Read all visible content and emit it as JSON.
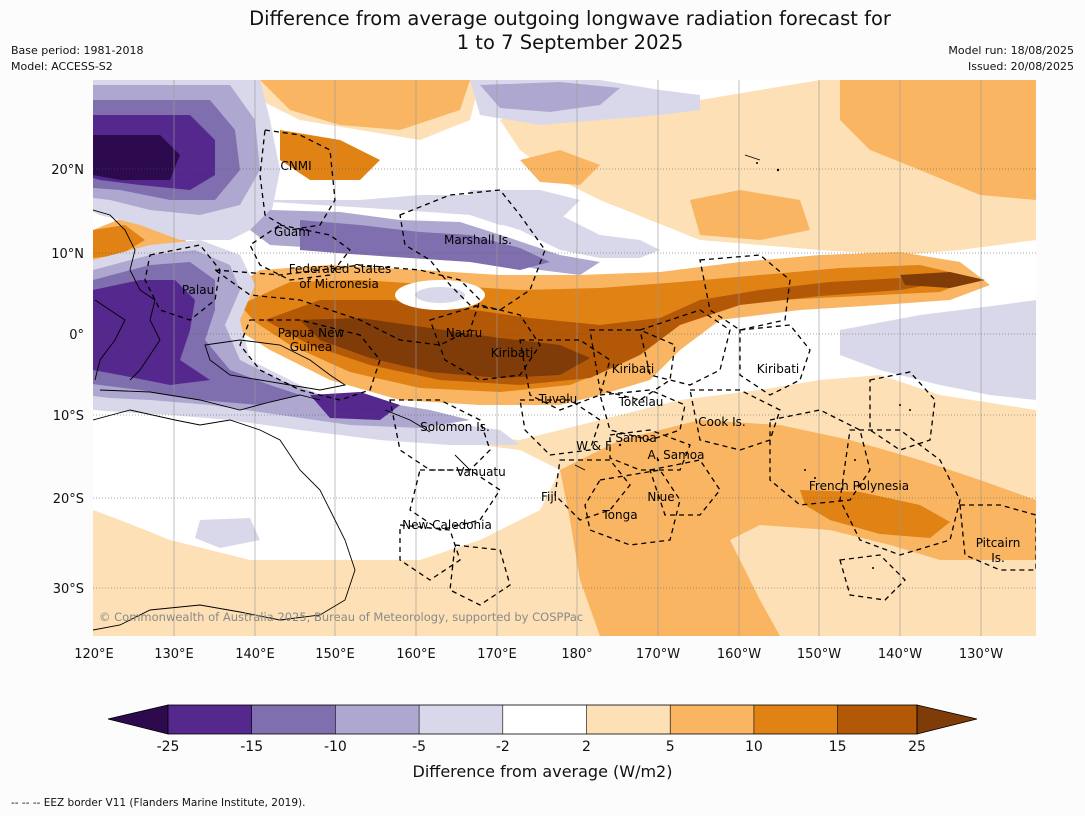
{
  "title": {
    "line1": "Difference from average outgoing longwave radiation forecast for",
    "line2": "1 to 7 September 2025"
  },
  "meta_left": [
    "Base period: 1981-2018",
    "Model: ACCESS-S2"
  ],
  "meta_right": [
    "Model run: 18/08/2025",
    "Issued: 20/08/2025"
  ],
  "copyright": "© Commonwealth of Australia 2025, Bureau of Meteorology, supported by COSPPac",
  "lon_labels": [
    "120°E",
    "130°E",
    "140°E",
    "150°E",
    "160°E",
    "170°E",
    "180°",
    "170°W",
    "160°W",
    "150°W",
    "140°W",
    "130°W"
  ],
  "lat_labels": [
    "20°N",
    "10°N",
    "0°",
    "10°S",
    "20°S",
    "30°S"
  ],
  "region_labels": [
    {
      "text": "CNMI"
    },
    {
      "text": "Guam"
    },
    {
      "text": "Marshall Is."
    },
    {
      "text": "Federated States"
    },
    {
      "text": "of Micronesia"
    },
    {
      "text": "Palau"
    },
    {
      "text": "Papua New"
    },
    {
      "text": "Guinea"
    },
    {
      "text": "Nauru"
    },
    {
      "text": "Kiribati"
    },
    {
      "text": "Kiribati"
    },
    {
      "text": "Kiribati"
    },
    {
      "text": "Tuvalu"
    },
    {
      "text": "Tokelau"
    },
    {
      "text": "Cook Is."
    },
    {
      "text": "Solomon Is."
    },
    {
      "text": "Samoa"
    },
    {
      "text": "W & F"
    },
    {
      "text": "A. Samoa"
    },
    {
      "text": "Vanuatu"
    },
    {
      "text": "Fiji"
    },
    {
      "text": "Niue"
    },
    {
      "text": "French Polynesia"
    },
    {
      "text": "Tonga"
    },
    {
      "text": "New Caledonia"
    },
    {
      "text": "Pitcairn"
    },
    {
      "text": "Is."
    }
  ],
  "colorbar": {
    "ticks": [
      "-25",
      "-15",
      "-10",
      "-5",
      "-2",
      "2",
      "5",
      "10",
      "15",
      "25"
    ],
    "colors": [
      "#2d0a4e",
      "#54288c",
      "#7f6fae",
      "#aea8d0",
      "#d8d8ea",
      "#ffffff",
      "#fde0b5",
      "#f9b562",
      "#e08214",
      "#b35806",
      "#7f3b08"
    ],
    "title": "Difference from average (W/m2)"
  },
  "footnote": "--  --  -- EEZ border V11 (Flanders Marine Institute, 2019)."
}
